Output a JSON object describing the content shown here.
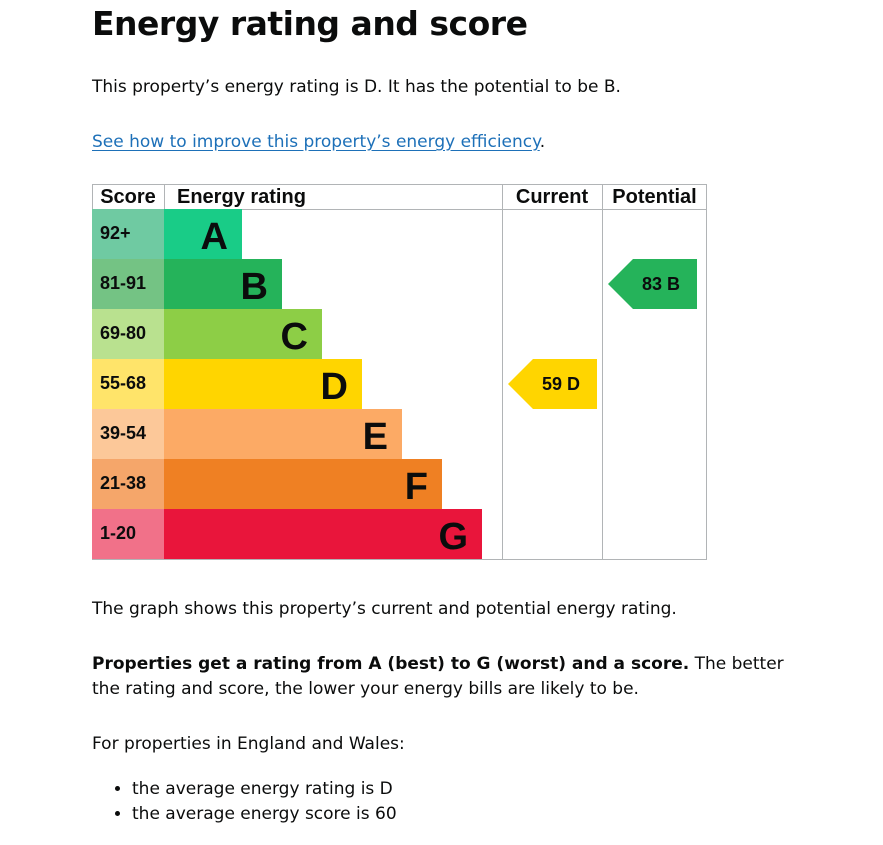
{
  "heading": "Energy rating and score",
  "intro": "This property’s energy rating is D. It has the potential to be B.",
  "improve_link": "See how to improve this property’s energy efficiency",
  "improve_link_suffix": ".",
  "graph_description": "The graph shows this property’s current and potential energy rating.",
  "properties_bold": "Properties get a rating from A (best) to G (worst) and a score.",
  "properties_rest": " The better the rating and score, the lower your energy bills are likely to be.",
  "england_wales": "For properties in England and Wales:",
  "averages": [
    "the average energy rating is D",
    "the average energy score is 60"
  ],
  "chart_data": {
    "type": "bar",
    "headers": {
      "score": "Score",
      "rating": "Energy rating",
      "current": "Current",
      "potential": "Potential"
    },
    "bands": [
      {
        "letter": "A",
        "range": "92+",
        "color": "#19cc87",
        "light": "#6fcaa2"
      },
      {
        "letter": "B",
        "range": "81-91",
        "color": "#25b35a",
        "light": "#74c384"
      },
      {
        "letter": "C",
        "range": "69-80",
        "color": "#8dce46",
        "light": "#b9e18f"
      },
      {
        "letter": "D",
        "range": "55-68",
        "color": "#ffd500",
        "light": "#ffe46a"
      },
      {
        "letter": "E",
        "range": "39-54",
        "color": "#fcaa65",
        "light": "#fcc899"
      },
      {
        "letter": "F",
        "range": "21-38",
        "color": "#ef8023",
        "light": "#f5a66a"
      },
      {
        "letter": "G",
        "range": "1-20",
        "color": "#e9153b",
        "light": "#f17189"
      }
    ],
    "current": {
      "score": 59,
      "letter": "D",
      "label": "59  D",
      "color": "#ffd500"
    },
    "potential": {
      "score": 83,
      "letter": "B",
      "label": "83  B",
      "color": "#25b35a"
    }
  }
}
